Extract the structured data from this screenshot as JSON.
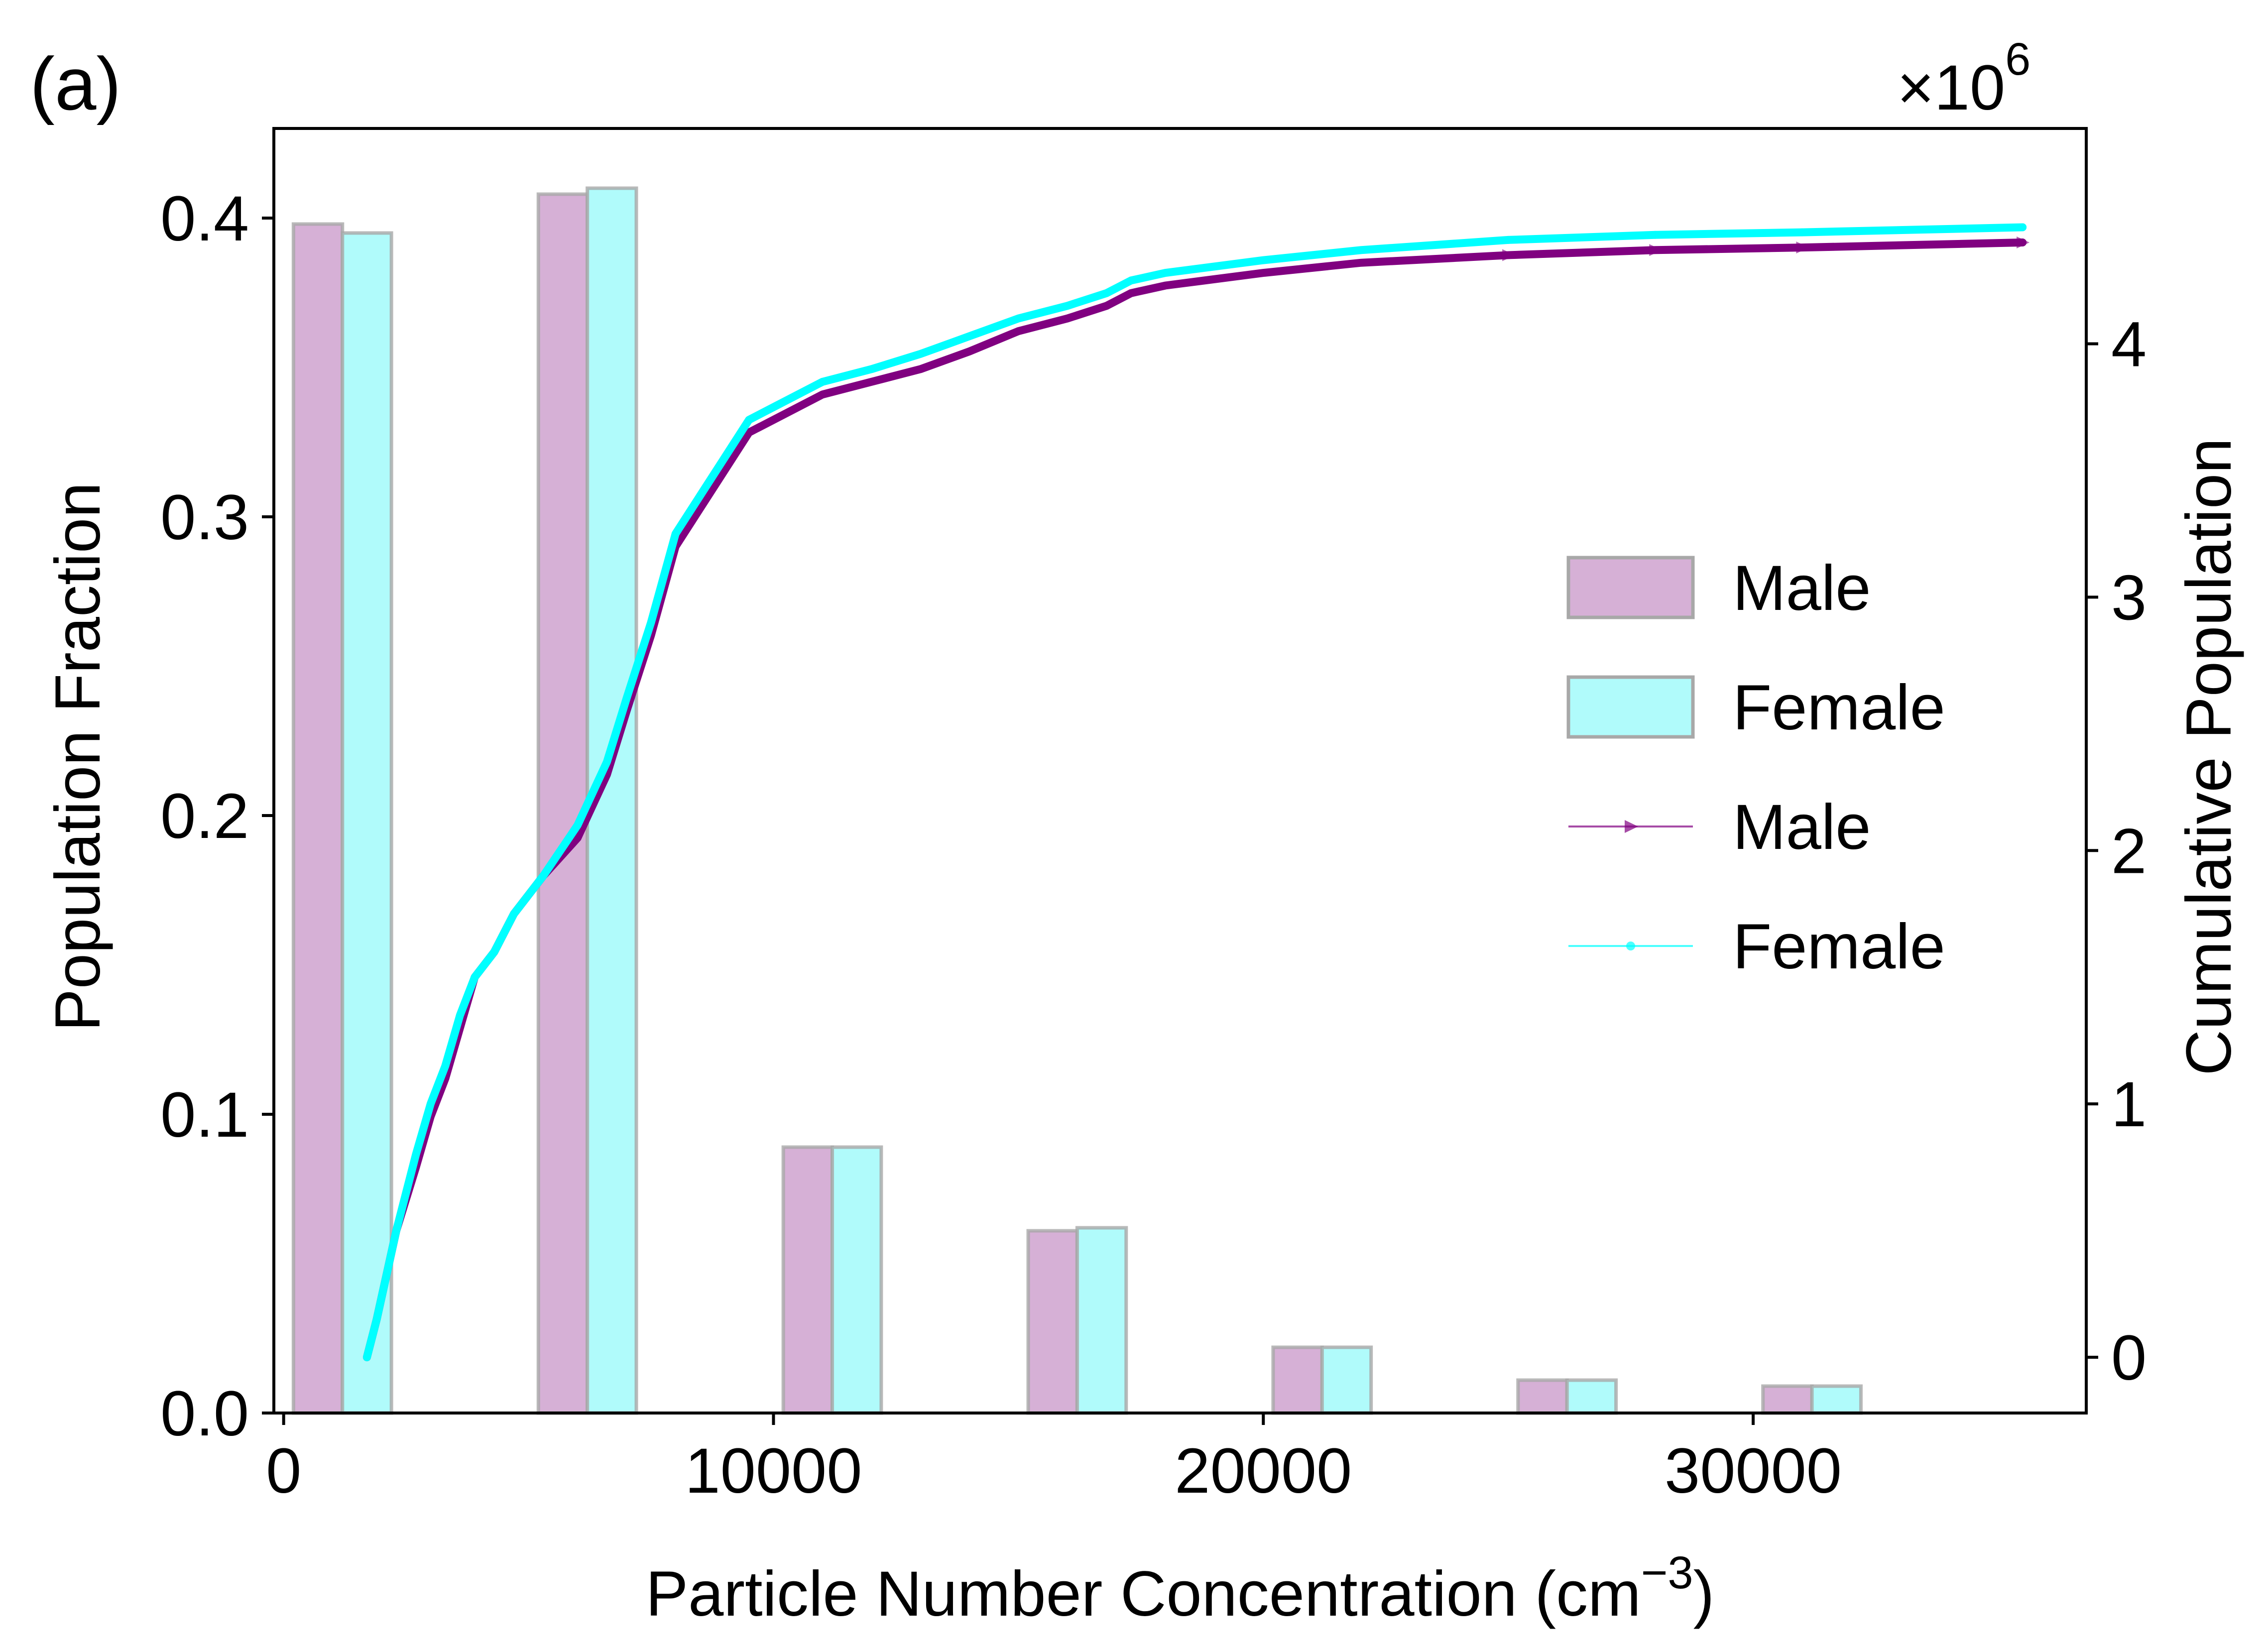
{
  "panel_label": "(a)",
  "chart_data": {
    "type": "bar",
    "xlabel": "Particle Number Concentration (cm",
    "xlabel_sup": "−3",
    "xlabel_close": ")",
    "ylabel": "Population Fraction",
    "y2label": "Cumulative Population",
    "y2_multiplier_base": "×10",
    "y2_multiplier_exp": "6",
    "xlim": [
      -200,
      36800
    ],
    "ylim": [
      0,
      0.43
    ],
    "y2lim": [
      -0.22,
      4.85
    ],
    "xticks": [
      0,
      10000,
      20000,
      30000
    ],
    "xtick_labels": [
      "0",
      "10000",
      "20000",
      "30000"
    ],
    "yticks": [
      0.0,
      0.1,
      0.2,
      0.3,
      0.4
    ],
    "ytick_labels": [
      "0.0",
      "0.1",
      "0.2",
      "0.3",
      "0.4"
    ],
    "y2ticks": [
      0,
      1,
      2,
      3,
      4
    ],
    "y2tick_labels": [
      "0",
      "1",
      "2",
      "3",
      "4"
    ],
    "categories": [
      2500,
      7500,
      12500,
      17500,
      22500,
      27500,
      32500
    ],
    "bar_series": [
      {
        "name": "Male",
        "color": "#D6B0D6",
        "values": [
          0.398,
          0.408,
          0.089,
          0.061,
          0.022,
          0.011,
          0.009
        ]
      },
      {
        "name": "Female",
        "color": "#B0FBFB",
        "values": [
          0.395,
          0.41,
          0.089,
          0.062,
          0.022,
          0.011,
          0.009
        ]
      }
    ],
    "line_series": [
      {
        "name": "Male",
        "color": "#800080",
        "marker": "triangle-right",
        "x": [
          1700,
          1900,
          2300,
          2700,
          3000,
          3300,
          3600,
          3900,
          4300,
          4700,
          5300,
          6000,
          6600,
          7000,
          7500,
          8000,
          8500,
          9000,
          9500,
          10000,
          11000,
          12000,
          13000,
          14000,
          15000,
          16000,
          16800,
          17300,
          18000,
          20000,
          22000,
          25000,
          28000,
          31000,
          35500
        ],
        "y": [
          0.0,
          0.15,
          0.5,
          0.75,
          0.95,
          1.1,
          1.3,
          1.5,
          1.6,
          1.75,
          1.9,
          2.05,
          2.3,
          2.55,
          2.85,
          3.2,
          3.35,
          3.5,
          3.65,
          3.7,
          3.8,
          3.85,
          3.9,
          3.97,
          4.05,
          4.1,
          4.15,
          4.2,
          4.23,
          4.28,
          4.32,
          4.35,
          4.37,
          4.38,
          4.4
        ]
      },
      {
        "name": "Female",
        "color": "#00FFFF",
        "marker": "point",
        "x": [
          1700,
          1900,
          2300,
          2700,
          3000,
          3300,
          3600,
          3900,
          4300,
          4700,
          5300,
          6000,
          6600,
          7000,
          7500,
          8000,
          8500,
          9000,
          9500,
          10000,
          11000,
          12000,
          13000,
          14000,
          15000,
          16000,
          16800,
          17300,
          18000,
          20000,
          22000,
          25000,
          28000,
          31000,
          35500
        ],
        "y": [
          0.0,
          0.15,
          0.5,
          0.8,
          1.0,
          1.15,
          1.35,
          1.5,
          1.6,
          1.75,
          1.9,
          2.1,
          2.35,
          2.6,
          2.9,
          3.25,
          3.4,
          3.55,
          3.7,
          3.75,
          3.85,
          3.9,
          3.96,
          4.03,
          4.1,
          4.15,
          4.2,
          4.25,
          4.28,
          4.33,
          4.37,
          4.41,
          4.43,
          4.44,
          4.46
        ]
      }
    ],
    "legend": {
      "position": "center-right",
      "entries": [
        {
          "label": "Male",
          "kind": "bar",
          "color": "#D6B0D6"
        },
        {
          "label": "Female",
          "kind": "bar",
          "color": "#B0FBFB"
        },
        {
          "label": "Male",
          "kind": "line",
          "color": "#800080"
        },
        {
          "label": "Female",
          "kind": "line",
          "color": "#00FFFF"
        }
      ]
    }
  }
}
